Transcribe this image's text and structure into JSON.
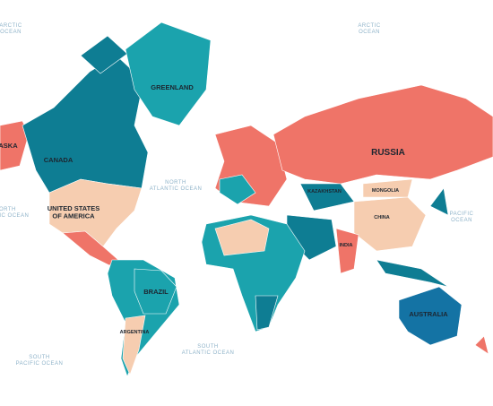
{
  "oceans": [
    "ARCTIC OCEAN",
    "ARCTIC OCEAN",
    "NORTH ATLANTIC OCEAN",
    "NORTH PACIFIC OCEAN",
    "PACIFIC OCEAN",
    "SOUTH PACIFIC OCEAN",
    "SOUTH ATLANTIC OCEAN"
  ],
  "countries": [
    "ALASKA",
    "CANADA",
    "GREENLAND",
    "UNITED STATES OF AMERICA",
    "RUSSIA",
    "KAZAKHSTAN",
    "MONGOLIA",
    "CHINA",
    "BRAZIL",
    "AUSTRALIA",
    "ARGENTINA",
    "INDIA"
  ]
}
